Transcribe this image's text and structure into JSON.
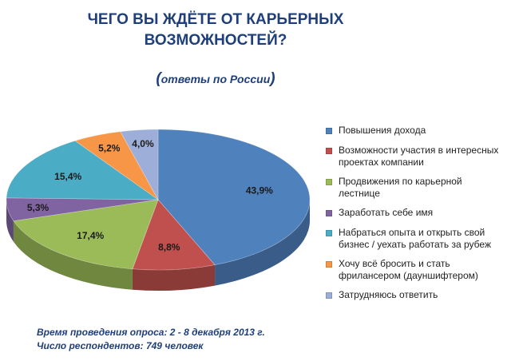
{
  "title_line1": "ЧЕГО ВЫ ЖДЁТЕ ОТ КАРЬЕРНЫХ",
  "title_line2": "ВОЗМОЖНОСТЕЙ?",
  "subtitle": "ответы по России",
  "chart_data": {
    "type": "pie",
    "title": "ЧЕГО ВЫ ЖДЁТЕ ОТ КАРЬЕРНЫХ ВОЗМОЖНОСТЕЙ?",
    "subtitle": "ответы по России",
    "categories": [
      "Повышения дохода",
      "Возможности участия в интересных проектах компании",
      "Продвижения по карьерной лестнице",
      "Заработать себе имя",
      "Набраться опыта и открыть свой бизнес / уехать работать за рубеж",
      "Хочу всё бросить и стать фрилансером (дауншифтером)",
      "Затрудняюсь ответить"
    ],
    "values": [
      43.9,
      8.8,
      17.4,
      5.3,
      15.4,
      5.2,
      4.0
    ],
    "data_labels": [
      "43,9%",
      "8,8%",
      "17,4%",
      "5,3%",
      "15,4%",
      "5,2%",
      "4,0%"
    ],
    "colors": [
      "#4f81bd",
      "#c0504d",
      "#9bbb59",
      "#8064a2",
      "#4bacc6",
      "#f79646",
      "#9dafd8"
    ],
    "legend_position": "right"
  },
  "legend": [
    {
      "line1": "Повышения дохода",
      "line2": ""
    },
    {
      "line1": "Возможности участия в интересных",
      "line2": "проектах компании"
    },
    {
      "line1": "Продвижения по карьерной",
      "line2": "лестнице"
    },
    {
      "line1": "Заработать себе имя",
      "line2": ""
    },
    {
      "line1": "Набраться опыта и открыть свой",
      "line2": "бизнес / уехать работать за рубеж"
    },
    {
      "line1": "Хочу всё бросить и стать",
      "line2": "фрилансером (дауншифтером)"
    },
    {
      "line1": "Затрудняюсь ответить",
      "line2": ""
    }
  ],
  "footer": {
    "line1": "Время проведения опроса:  2 - 8 декабря 2013 г.",
    "line2": "Число респондентов:  749 человек"
  }
}
